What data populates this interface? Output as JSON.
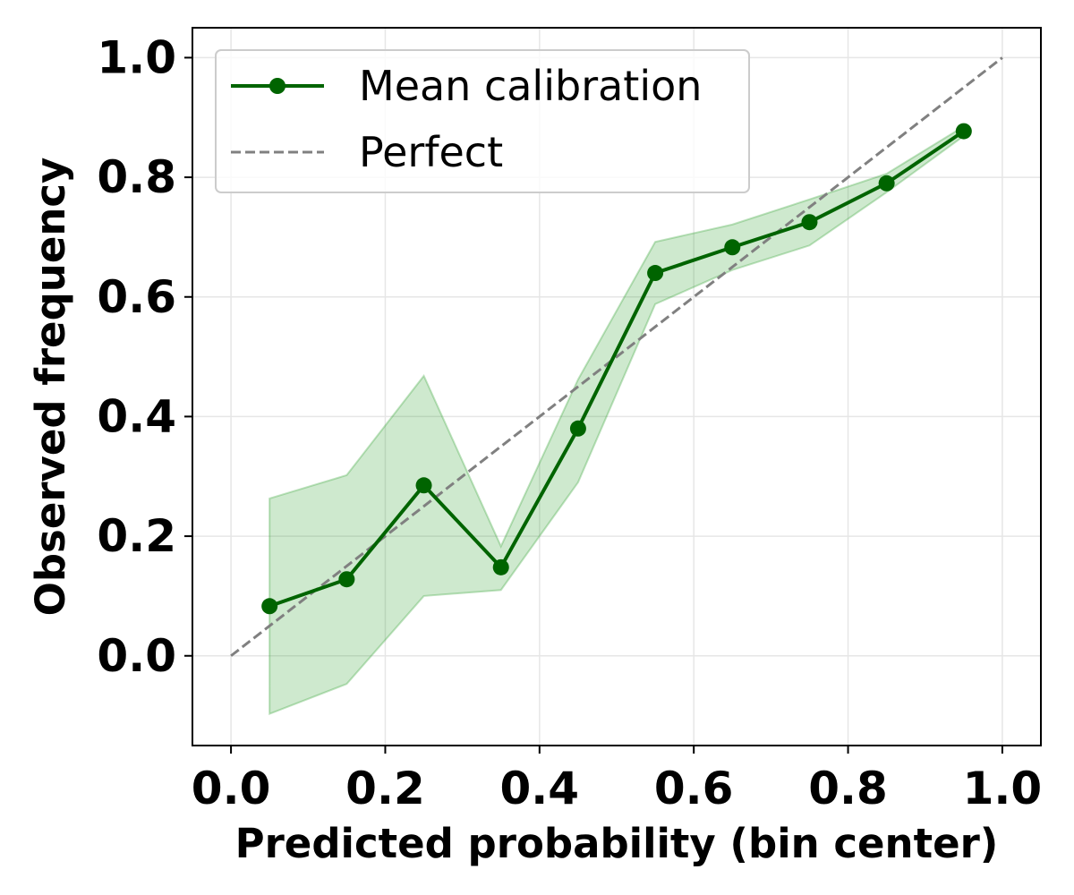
{
  "chart_data": {
    "type": "line",
    "title": "",
    "xlabel": "Predicted probability (bin center)",
    "ylabel": "Observed frequency",
    "xlim": [
      -0.05,
      1.05
    ],
    "ylim": [
      -0.15,
      1.05
    ],
    "xticks": [
      0.0,
      0.2,
      0.4,
      0.6,
      0.8,
      1.0
    ],
    "yticks": [
      0.0,
      0.2,
      0.4,
      0.6,
      0.8,
      1.0
    ],
    "xtick_labels": [
      "0.0",
      "0.2",
      "0.4",
      "0.6",
      "0.8",
      "1.0"
    ],
    "ytick_labels": [
      "0.0",
      "0.2",
      "0.4",
      "0.6",
      "0.8",
      "1.0"
    ],
    "grid": true,
    "legend_position": "upper-left",
    "series": [
      {
        "name": "Mean calibration",
        "color": "#006400",
        "marker": "circle",
        "x": [
          0.05,
          0.15,
          0.25,
          0.35,
          0.45,
          0.55,
          0.65,
          0.75,
          0.85,
          0.95
        ],
        "y": [
          0.083,
          0.128,
          0.285,
          0.148,
          0.38,
          0.64,
          0.683,
          0.725,
          0.79,
          0.877
        ],
        "band_lower": [
          -0.097,
          -0.047,
          0.1,
          0.11,
          0.29,
          0.588,
          0.645,
          0.686,
          0.775,
          0.869
        ],
        "band_upper": [
          0.263,
          0.302,
          0.468,
          0.183,
          0.462,
          0.692,
          0.721,
          0.763,
          0.806,
          0.885
        ],
        "band_color": "#2ca02c"
      },
      {
        "name": "Perfect",
        "color": "#808080",
        "style": "dashed",
        "x": [
          0.0,
          1.0
        ],
        "y": [
          0.0,
          1.0
        ]
      }
    ]
  }
}
